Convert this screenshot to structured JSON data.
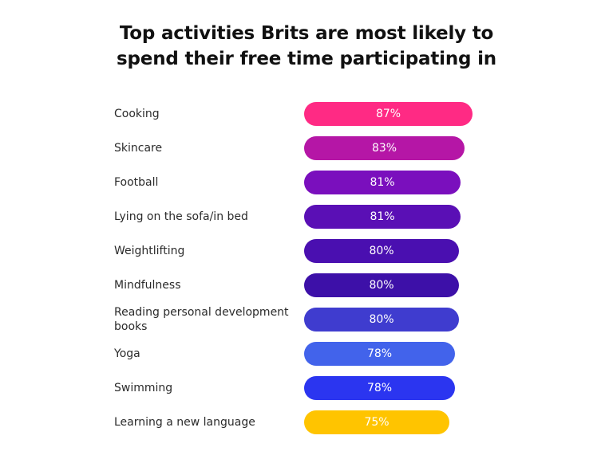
{
  "chart_data": {
    "type": "bar",
    "orientation": "horizontal",
    "title": "Top activities Brits are most likely to spend their free time participating in",
    "title_lines": [
      "Top activities Brits are most likely to",
      "spend their free time participating in"
    ],
    "categories": [
      "Cooking",
      "Skincare",
      "Football",
      "Lying on the sofa/in bed",
      "Weightlifting",
      "Mindfulness",
      "Reading personal development books",
      "Yoga",
      "Swimming",
      "Learning a new language"
    ],
    "values": [
      87,
      83,
      81,
      81,
      80,
      80,
      80,
      78,
      78,
      75
    ],
    "value_labels": [
      "87%",
      "83%",
      "81%",
      "81%",
      "80%",
      "80%",
      "80%",
      "78%",
      "78%",
      "75%"
    ],
    "bar_colors": [
      "#ff2a84",
      "#b516a6",
      "#7a0fbd",
      "#5a0fb5",
      "#4a0fb0",
      "#3d10a8",
      "#3f3ccf",
      "#4263eb",
      "#2b35f0",
      "#ffc400"
    ],
    "xlabel": "",
    "ylabel": "",
    "grid": false,
    "legend": "none"
  }
}
